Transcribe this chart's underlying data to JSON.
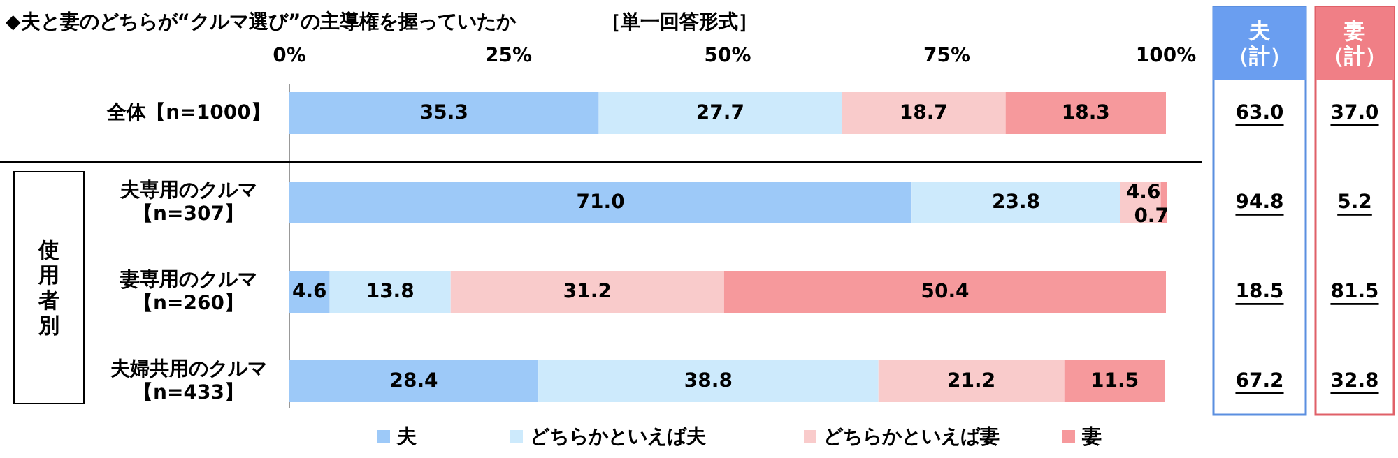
{
  "chart_data": {
    "type": "bar",
    "orientation": "horizontal",
    "stacked": true,
    "legend": "bottom",
    "title": "◆夫と妻のどちらが“クルマ選び”の主導権を握っていたか",
    "subtitle": "［単一回答形式］",
    "categories": [
      "全体【n=1000】",
      "夫専用のクルマ【n=307】",
      "妻専用のクルマ【n=260】",
      "夫婦共用のクルマ【n=433】"
    ],
    "xlim": [
      0,
      100
    ],
    "xticks": [
      {
        "value": 0,
        "label": "0%"
      },
      {
        "value": 25,
        "label": "25%"
      },
      {
        "value": 50,
        "label": "50%"
      },
      {
        "value": 75,
        "label": "75%"
      },
      {
        "value": 100,
        "label": "100%"
      }
    ],
    "series": [
      {
        "name": "夫",
        "color": "#9dc9f8",
        "values": [
          35.3,
          71.0,
          4.6,
          28.4
        ],
        "value_labels": [
          "35.3",
          "71.0",
          "4.6",
          "28.4"
        ]
      },
      {
        "name": "どちらかといえば夫",
        "color": "#cdeafc",
        "values": [
          27.7,
          23.8,
          13.8,
          38.8
        ],
        "value_labels": [
          "27.7",
          "23.8",
          "13.8",
          "38.8"
        ]
      },
      {
        "name": "どちらかといえば妻",
        "color": "#f9cbcb",
        "values": [
          18.7,
          4.6,
          31.2,
          21.2
        ],
        "value_labels": [
          "18.7",
          "4.6",
          "31.2",
          "21.2"
        ]
      },
      {
        "name": "妻",
        "color": "#f6999c",
        "values": [
          18.3,
          0.7,
          50.4,
          11.5
        ],
        "value_labels": [
          "18.3",
          "0.7",
          "50.4",
          "11.5"
        ]
      }
    ],
    "annotations": [
      "使用者別",
      "夫（計）",
      "妻（計）",
      "63.0",
      "37.0",
      "94.8",
      "5.2",
      "18.5",
      "81.5",
      "67.2",
      "32.8"
    ]
  }
}
